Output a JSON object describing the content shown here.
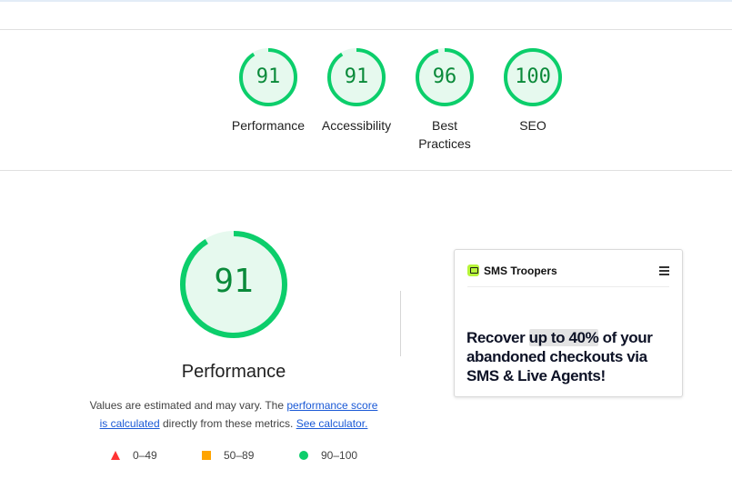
{
  "summary_gauges": [
    {
      "score": "91",
      "label": "Performance",
      "value": 91
    },
    {
      "score": "91",
      "label": "Accessibility",
      "value": 91
    },
    {
      "score": "96",
      "label_line1": "Best",
      "label_line2": "Practices",
      "value": 96
    },
    {
      "score": "100",
      "label": "SEO",
      "value": 100
    }
  ],
  "performance": {
    "score": "91",
    "value": 91,
    "title": "Performance",
    "desc_prefix": "Values are estimated and may vary. The ",
    "link_score_line1": "performance score",
    "link_score_line2": "is calculated",
    "desc_middle": " directly from these metrics. ",
    "link_calculator": "See calculator."
  },
  "legend": [
    {
      "range": "0–49",
      "shape": "triangle",
      "color": "#ff3333"
    },
    {
      "range": "50–89",
      "shape": "square",
      "color": "#ffa400"
    },
    {
      "range": "90–100",
      "shape": "circle",
      "color": "#0cce6b"
    }
  ],
  "thumbnail": {
    "brand": "SMS Troopers",
    "brand_icon": "chat-bubble-icon",
    "menu_icon": "hamburger-menu-icon",
    "headline_part1": "Recover ",
    "headline_highlight": "up to 40%",
    "headline_part2": " of your abandoned checkouts via SMS & Live Agents!"
  },
  "colors": {
    "pass_ring": "#0cce6b",
    "pass_fill": "#e6f9ee",
    "pass_text": "#0a8a3a",
    "link": "#1a59d6"
  }
}
